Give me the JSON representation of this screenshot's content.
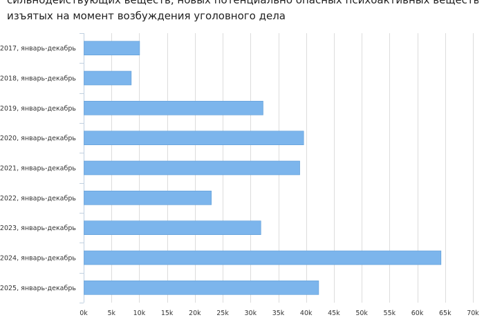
{
  "title_lines": [
    "сильнодействующих веществ, новых потенциально опасных психоактивных веществ,",
    "изъятых на момент возбуждения уголовного дела"
  ],
  "colors": {
    "bar": "#7cb5ec",
    "bar_stroke": "#5b9bd5",
    "grid": "#dcdcdc",
    "axis": "#c0d0e0",
    "text": "#333333"
  },
  "chart_data": {
    "type": "bar",
    "orientation": "horizontal",
    "categories": [
      "2017, январь-декабрь",
      "2018, январь-декабрь",
      "2019, январь-декабрь",
      "2020, январь-декабрь",
      "2021, январь-декабрь",
      "2022, январь-декабрь",
      "2023, январь-декабрь",
      "2024, январь-декабрь",
      "2025, январь-декабрь"
    ],
    "values": [
      10000,
      8500,
      32200,
      39500,
      38800,
      22900,
      31800,
      64200,
      42200
    ],
    "xlim": [
      0,
      70000
    ],
    "x_ticks": [
      0,
      5000,
      10000,
      15000,
      20000,
      25000,
      30000,
      35000,
      40000,
      45000,
      50000,
      55000,
      60000,
      65000,
      70000
    ],
    "x_tick_labels": [
      "0k",
      "5k",
      "10k",
      "15k",
      "20k",
      "25k",
      "30k",
      "35k",
      "40k",
      "45k",
      "50k",
      "55k",
      "60k",
      "65k",
      "70k"
    ],
    "grid": true,
    "legend": "none"
  }
}
